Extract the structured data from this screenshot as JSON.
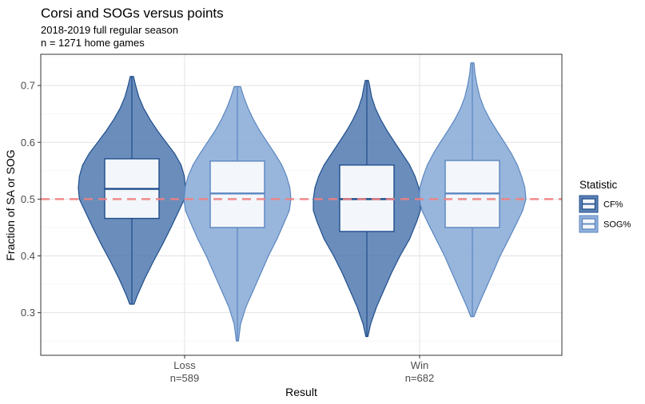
{
  "chart_data": {
    "type": "violin",
    "title": "Corsi and SOGs versus points",
    "subtitle_lines": [
      "2018-2019 full regular season",
      "n = 1271 home games"
    ],
    "xlabel": "Result",
    "ylabel": "Fraction of SA or SOG",
    "ylim": [
      0.225,
      0.755
    ],
    "yticks": [
      0.3,
      0.4,
      0.5,
      0.6,
      0.7
    ],
    "ytick_labels": [
      "0.3",
      "0.4",
      "0.5",
      "0.6",
      "0.7"
    ],
    "grid": true,
    "reference_line": {
      "y": 0.5,
      "style": "dashed",
      "color": "#f08080"
    },
    "categories": [
      {
        "label": "Loss",
        "count_label": "n=589"
      },
      {
        "label": "Win",
        "count_label": "n=682"
      }
    ],
    "legend": {
      "title": "Statistic",
      "position": "right",
      "entries": [
        "CF%",
        "SOG%"
      ]
    },
    "series": [
      {
        "name": "CF%",
        "fill": "#4a74ad",
        "stroke": "#1f4e8c",
        "groups": [
          {
            "category": "Loss",
            "box": {
              "q1": 0.466,
              "median": 0.518,
              "q3": 0.571,
              "lower_whisker": 0.315,
              "upper_whisker": 0.716
            },
            "density": [
              [
                0.315,
                0.04
              ],
              [
                0.33,
                0.1
              ],
              [
                0.36,
                0.24
              ],
              [
                0.39,
                0.4
              ],
              [
                0.42,
                0.57
              ],
              [
                0.45,
                0.73
              ],
              [
                0.48,
                0.88
              ],
              [
                0.5,
                0.98
              ],
              [
                0.52,
                1.0
              ],
              [
                0.54,
                0.98
              ],
              [
                0.56,
                0.92
              ],
              [
                0.58,
                0.8
              ],
              [
                0.6,
                0.64
              ],
              [
                0.62,
                0.48
              ],
              [
                0.64,
                0.34
              ],
              [
                0.66,
                0.22
              ],
              [
                0.68,
                0.13
              ],
              [
                0.7,
                0.07
              ],
              [
                0.716,
                0.03
              ]
            ]
          },
          {
            "category": "Win",
            "box": {
              "q1": 0.443,
              "median": 0.5,
              "q3": 0.56,
              "lower_whisker": 0.258,
              "upper_whisker": 0.709
            },
            "density": [
              [
                0.258,
                0.02
              ],
              [
                0.28,
                0.07
              ],
              [
                0.31,
                0.18
              ],
              [
                0.34,
                0.32
              ],
              [
                0.37,
                0.46
              ],
              [
                0.4,
                0.62
              ],
              [
                0.43,
                0.8
              ],
              [
                0.46,
                0.93
              ],
              [
                0.48,
                1.0
              ],
              [
                0.5,
                1.0
              ],
              [
                0.52,
                0.97
              ],
              [
                0.54,
                0.9
              ],
              [
                0.56,
                0.8
              ],
              [
                0.58,
                0.66
              ],
              [
                0.6,
                0.52
              ],
              [
                0.62,
                0.38
              ],
              [
                0.64,
                0.26
              ],
              [
                0.66,
                0.16
              ],
              [
                0.68,
                0.09
              ],
              [
                0.7,
                0.05
              ],
              [
                0.709,
                0.03
              ]
            ]
          }
        ]
      },
      {
        "name": "SOG%",
        "fill": "#86a9d6",
        "stroke": "#5b86c0",
        "groups": [
          {
            "category": "Loss",
            "box": {
              "q1": 0.45,
              "median": 0.51,
              "q3": 0.567,
              "lower_whisker": 0.25,
              "upper_whisker": 0.698
            },
            "density": [
              [
                0.25,
                0.02
              ],
              [
                0.28,
                0.06
              ],
              [
                0.31,
                0.16
              ],
              [
                0.34,
                0.3
              ],
              [
                0.37,
                0.44
              ],
              [
                0.4,
                0.58
              ],
              [
                0.43,
                0.74
              ],
              [
                0.46,
                0.88
              ],
              [
                0.48,
                0.97
              ],
              [
                0.5,
                1.0
              ],
              [
                0.52,
                0.98
              ],
              [
                0.54,
                0.92
              ],
              [
                0.56,
                0.83
              ],
              [
                0.58,
                0.7
              ],
              [
                0.6,
                0.56
              ],
              [
                0.62,
                0.42
              ],
              [
                0.64,
                0.3
              ],
              [
                0.66,
                0.2
              ],
              [
                0.68,
                0.12
              ],
              [
                0.698,
                0.06
              ]
            ]
          },
          {
            "category": "Win",
            "box": {
              "q1": 0.45,
              "median": 0.51,
              "q3": 0.568,
              "lower_whisker": 0.293,
              "upper_whisker": 0.74
            },
            "density": [
              [
                0.293,
                0.03
              ],
              [
                0.31,
                0.1
              ],
              [
                0.34,
                0.24
              ],
              [
                0.37,
                0.38
              ],
              [
                0.4,
                0.52
              ],
              [
                0.43,
                0.68
              ],
              [
                0.46,
                0.84
              ],
              [
                0.48,
                0.94
              ],
              [
                0.5,
                1.0
              ],
              [
                0.52,
                0.98
              ],
              [
                0.54,
                0.92
              ],
              [
                0.56,
                0.84
              ],
              [
                0.58,
                0.73
              ],
              [
                0.6,
                0.6
              ],
              [
                0.62,
                0.46
              ],
              [
                0.64,
                0.33
              ],
              [
                0.66,
                0.22
              ],
              [
                0.68,
                0.14
              ],
              [
                0.7,
                0.09
              ],
              [
                0.72,
                0.05
              ],
              [
                0.74,
                0.03
              ]
            ]
          }
        ]
      }
    ]
  }
}
